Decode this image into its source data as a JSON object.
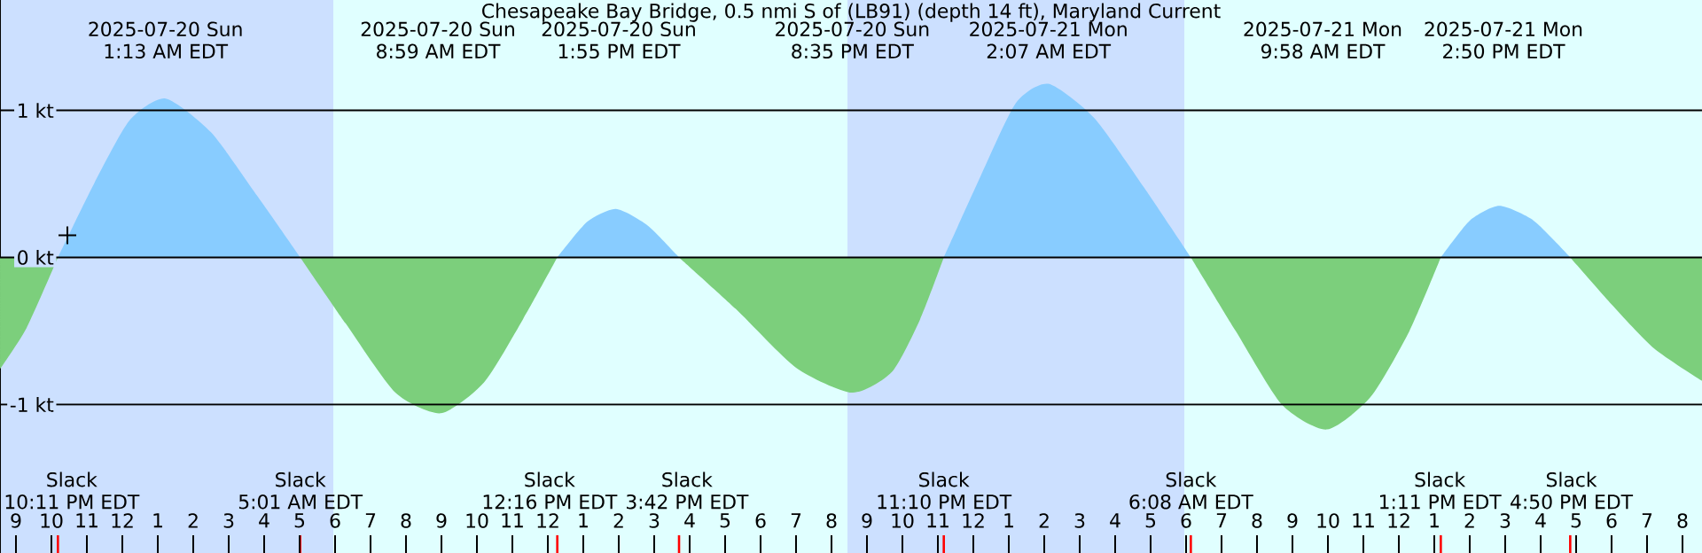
{
  "chart_data": {
    "type": "area",
    "title": "Chesapeake Bay Bridge, 0.5 nmi S of (LB91) (depth 14 ft), Maryland Current",
    "xlim": [
      "2025-07-19T20:33",
      "2025-07-21T20:33"
    ],
    "ylim": [
      -2.01,
      1.75
    ],
    "xticks": [
      {
        "value": "2025-07-19T21:00",
        "label": "9"
      },
      {
        "value": "2025-07-19T22:00",
        "label": "10"
      },
      {
        "value": "2025-07-19T23:00",
        "label": "11"
      },
      {
        "value": "2025-07-20T00:00",
        "label": "12"
      },
      {
        "value": "2025-07-20T01:00",
        "label": "1"
      },
      {
        "value": "2025-07-20T02:00",
        "label": "2"
      },
      {
        "value": "2025-07-20T03:00",
        "label": "3"
      },
      {
        "value": "2025-07-20T04:00",
        "label": "4"
      },
      {
        "value": "2025-07-20T05:00",
        "label": "5"
      },
      {
        "value": "2025-07-20T06:00",
        "label": "6"
      },
      {
        "value": "2025-07-20T07:00",
        "label": "7"
      },
      {
        "value": "2025-07-20T08:00",
        "label": "8"
      },
      {
        "value": "2025-07-20T09:00",
        "label": "9"
      },
      {
        "value": "2025-07-20T10:00",
        "label": "10"
      },
      {
        "value": "2025-07-20T11:00",
        "label": "11"
      },
      {
        "value": "2025-07-20T12:00",
        "label": "12"
      },
      {
        "value": "2025-07-20T13:00",
        "label": "1"
      },
      {
        "value": "2025-07-20T14:00",
        "label": "2"
      },
      {
        "value": "2025-07-20T15:00",
        "label": "3"
      },
      {
        "value": "2025-07-20T16:00",
        "label": "4"
      },
      {
        "value": "2025-07-20T17:00",
        "label": "5"
      },
      {
        "value": "2025-07-20T18:00",
        "label": "6"
      },
      {
        "value": "2025-07-20T19:00",
        "label": "7"
      },
      {
        "value": "2025-07-20T20:00",
        "label": "8"
      },
      {
        "value": "2025-07-20T21:00",
        "label": "9"
      },
      {
        "value": "2025-07-20T22:00",
        "label": "10"
      },
      {
        "value": "2025-07-20T23:00",
        "label": "11"
      },
      {
        "value": "2025-07-21T00:00",
        "label": "12"
      },
      {
        "value": "2025-07-21T01:00",
        "label": "1"
      },
      {
        "value": "2025-07-21T02:00",
        "label": "2"
      },
      {
        "value": "2025-07-21T03:00",
        "label": "3"
      },
      {
        "value": "2025-07-21T04:00",
        "label": "4"
      },
      {
        "value": "2025-07-21T05:00",
        "label": "5"
      },
      {
        "value": "2025-07-21T06:00",
        "label": "6"
      },
      {
        "value": "2025-07-21T07:00",
        "label": "7"
      },
      {
        "value": "2025-07-21T08:00",
        "label": "8"
      },
      {
        "value": "2025-07-21T09:00",
        "label": "9"
      },
      {
        "value": "2025-07-21T10:00",
        "label": "10"
      },
      {
        "value": "2025-07-21T11:00",
        "label": "11"
      },
      {
        "value": "2025-07-21T12:00",
        "label": "12"
      },
      {
        "value": "2025-07-21T13:00",
        "label": "1"
      },
      {
        "value": "2025-07-21T14:00",
        "label": "2"
      },
      {
        "value": "2025-07-21T15:00",
        "label": "3"
      },
      {
        "value": "2025-07-21T16:00",
        "label": "4"
      },
      {
        "value": "2025-07-21T17:00",
        "label": "5"
      },
      {
        "value": "2025-07-21T18:00",
        "label": "6"
      },
      {
        "value": "2025-07-21T19:00",
        "label": "7"
      },
      {
        "value": "2025-07-21T20:00",
        "label": "8"
      }
    ],
    "x2lim": [
      "2025-07-19T20:33",
      "2025-07-21T20:33"
    ],
    "x2ticks": [
      {
        "value": "2025-07-20T01:13",
        "label": "2025-07-20 Sun 1:13 AM EDT"
      },
      {
        "value": "2025-07-20T08:59",
        "label": "2025-07-20 Sun 8:59 AM EDT"
      },
      {
        "value": "2025-07-20T13:55",
        "label": "2025-07-20 Sun 1:55 PM EDT"
      },
      {
        "value": "2025-07-20T20:35",
        "label": "2025-07-20 Sun 8:35 PM EDT"
      },
      {
        "value": "2025-07-21T02:07",
        "label": "2025-07-21 Mon 2:07 AM EDT"
      },
      {
        "value": "2025-07-21T09:58",
        "label": "2025-07-21 Mon 9:58 AM EDT"
      },
      {
        "value": "2025-07-21T14:50",
        "label": "2025-07-21 Mon 2:50 PM EDT"
      }
    ],
    "yticks": [
      {
        "value": 1,
        "label": "1 kt"
      },
      {
        "value": 0,
        "label": "0 kt"
      },
      {
        "value": -1,
        "label": "-1 kt"
      }
    ],
    "grid": "y",
    "bands": [
      {
        "axis": "x",
        "from": "2025-07-19T20:33",
        "to": "2025-07-20T05:57",
        "color": "#cce0ff"
      },
      {
        "axis": "x",
        "from": "2025-07-20T05:57",
        "to": "2025-07-20T20:27",
        "color": "#e0ffff"
      },
      {
        "axis": "x",
        "from": "2025-07-20T20:27",
        "to": "2025-07-21T05:57",
        "color": "#cce0ff"
      },
      {
        "axis": "x",
        "from": "2025-07-21T05:57",
        "to": "2025-07-21T20:33",
        "color": "#e0ffff"
      }
    ],
    "ref_lines": [
      {
        "axis": "x",
        "value": "2025-07-19T22:11",
        "label": "Slack 10:11 PM EDT",
        "color": "#ff0000"
      },
      {
        "axis": "x",
        "value": "2025-07-20T05:01",
        "label": "Slack 5:01 AM EDT",
        "color": "#ff0000"
      },
      {
        "axis": "x",
        "value": "2025-07-20T12:16",
        "label": "Slack 12:16 PM EDT",
        "color": "#ff0000"
      },
      {
        "axis": "x",
        "value": "2025-07-20T15:42",
        "label": "Slack 3:42 PM EDT",
        "color": "#ff0000"
      },
      {
        "axis": "x",
        "value": "2025-07-20T23:10",
        "label": "Slack 11:10 PM EDT",
        "color": "#ff0000"
      },
      {
        "axis": "x",
        "value": "2025-07-21T06:08",
        "label": "Slack 6:08 AM EDT",
        "color": "#ff0000"
      },
      {
        "axis": "x",
        "value": "2025-07-21T13:11",
        "label": "Slack 1:11 PM EDT",
        "color": "#ff0000"
      },
      {
        "axis": "x",
        "value": "2025-07-21T16:50",
        "label": "Slack 4:50 PM EDT",
        "color": "#ff0000"
      }
    ],
    "series": [
      {
        "color": "#7ccf7c",
        "x": [
          "2025-07-19T20:33",
          "2025-07-19T21:18",
          "2025-07-19T22:11"
        ],
        "values": [
          -0.76,
          -0.48,
          0
        ]
      },
      {
        "color": "#88ccff",
        "x": [
          "2025-07-19T22:11",
          "2025-07-19T23:12",
          "2025-07-20T00:12",
          "2025-07-20T01:13",
          "2025-07-20T02:30",
          "2025-07-20T03:48",
          "2025-07-20T05:01"
        ],
        "values": [
          0,
          0.5,
          0.93,
          1.08,
          0.85,
          0.42,
          0
        ]
      },
      {
        "color": "#7ccf7c",
        "x": [
          "2025-07-20T05:01",
          "2025-07-20T06:18",
          "2025-07-20T07:42",
          "2025-07-20T08:59",
          "2025-07-20T10:12",
          "2025-07-20T11:18",
          "2025-07-20T12:16"
        ],
        "values": [
          0,
          -0.45,
          -0.92,
          -1.06,
          -0.85,
          -0.42,
          0
        ]
      },
      {
        "color": "#88ccff",
        "x": [
          "2025-07-20T12:16",
          "2025-07-20T13:06",
          "2025-07-20T13:55",
          "2025-07-20T14:48",
          "2025-07-20T15:42"
        ],
        "values": [
          0,
          0.24,
          0.33,
          0.22,
          0
        ]
      },
      {
        "color": "#7ccf7c",
        "x": [
          "2025-07-20T15:42",
          "2025-07-20T17:18",
          "2025-07-20T19:00",
          "2025-07-20T20:35",
          "2025-07-20T21:42",
          "2025-07-20T22:30",
          "2025-07-20T23:10"
        ],
        "values": [
          0,
          -0.35,
          -0.75,
          -0.92,
          -0.78,
          -0.42,
          0
        ]
      },
      {
        "color": "#88ccff",
        "x": [
          "2025-07-20T23:10",
          "2025-07-21T00:12",
          "2025-07-21T01:12",
          "2025-07-21T02:07",
          "2025-07-21T03:24",
          "2025-07-21T04:48",
          "2025-07-21T06:08"
        ],
        "values": [
          0,
          0.55,
          1.05,
          1.18,
          0.95,
          0.48,
          0
        ]
      },
      {
        "color": "#7ccf7c",
        "x": [
          "2025-07-21T06:08",
          "2025-07-21T07:24",
          "2025-07-21T08:42",
          "2025-07-21T09:58",
          "2025-07-21T11:12",
          "2025-07-21T12:18",
          "2025-07-21T13:11"
        ],
        "values": [
          0,
          -0.5,
          -1.0,
          -1.17,
          -0.95,
          -0.5,
          0
        ]
      },
      {
        "color": "#88ccff",
        "x": [
          "2025-07-21T13:11",
          "2025-07-21T14:00",
          "2025-07-21T14:50",
          "2025-07-21T15:48",
          "2025-07-21T16:50"
        ],
        "values": [
          0,
          0.25,
          0.35,
          0.25,
          0
        ]
      },
      {
        "color": "#7ccf7c",
        "x": [
          "2025-07-21T16:50",
          "2025-07-21T18:00",
          "2025-07-21T19:12",
          "2025-07-21T20:33"
        ],
        "values": [
          0,
          -0.32,
          -0.62,
          -0.84
        ]
      },
      {
        "type": "scatter",
        "marker": "cross",
        "color": "#000000",
        "x": [
          "2025-07-19T22:27"
        ],
        "values": [
          0.15
        ]
      }
    ]
  }
}
